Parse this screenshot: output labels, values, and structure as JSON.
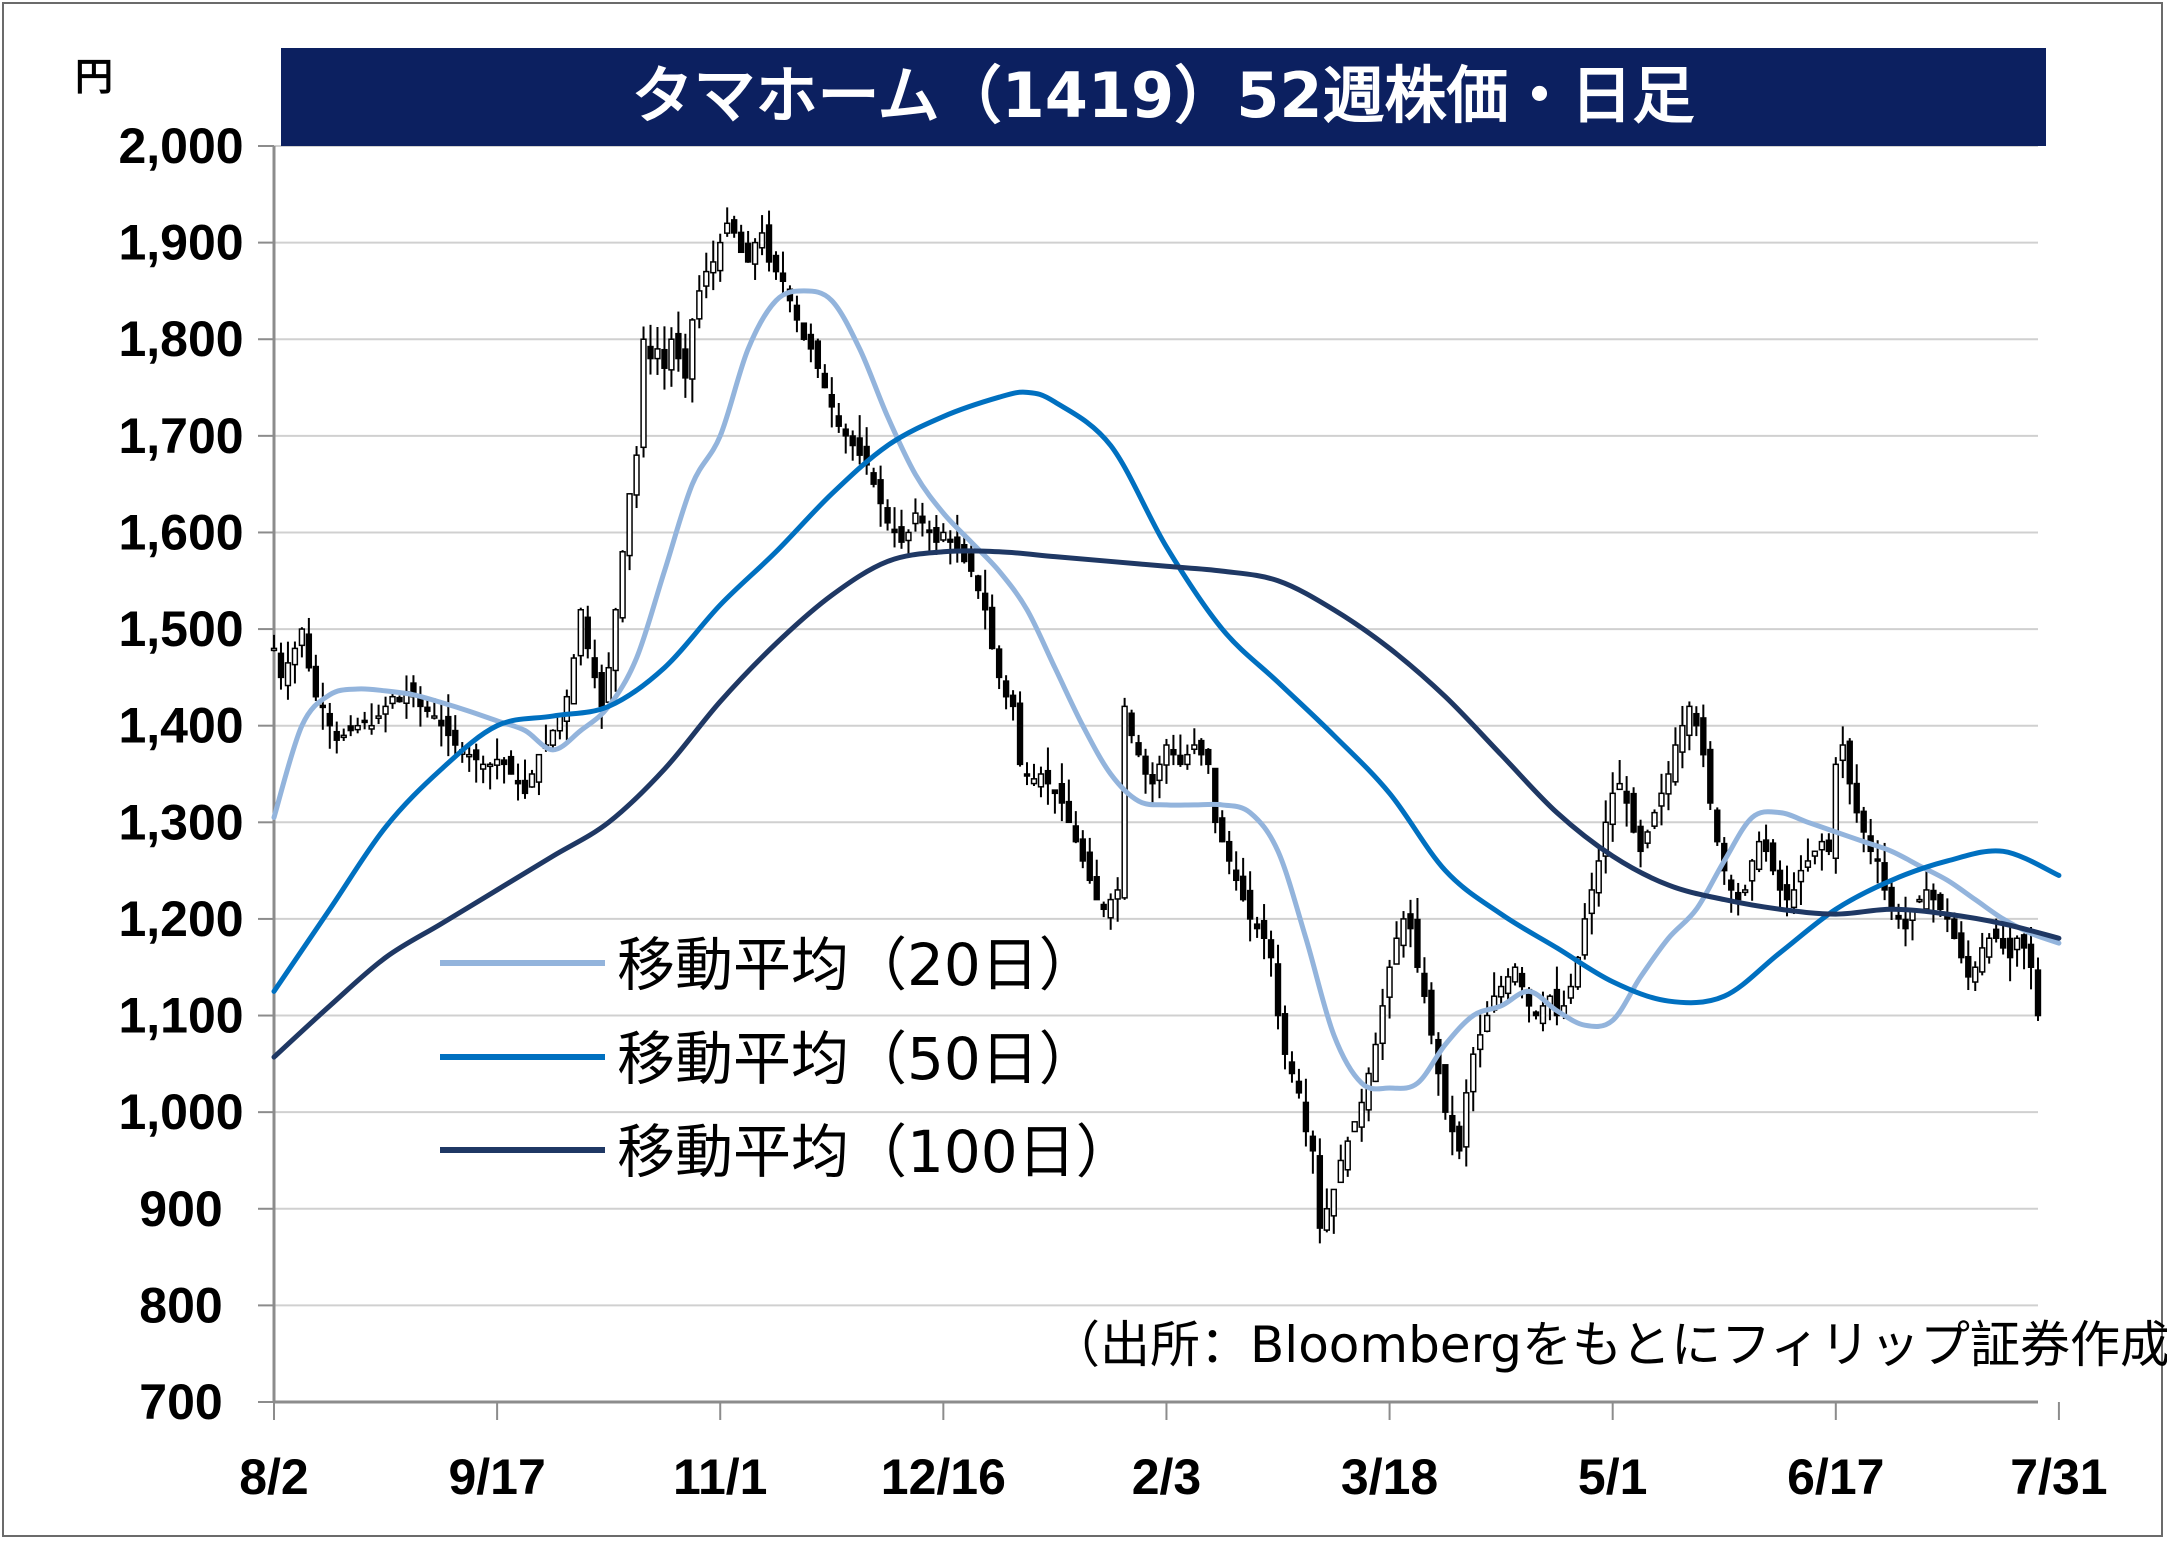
{
  "chart_data": {
    "type": "line",
    "subtype": "candlestick-with-moving-averages",
    "title": "タマホーム（1419）52週株価・日足",
    "y_unit_label": "円",
    "ylim": [
      700,
      2000
    ],
    "y_ticks": [
      700,
      800,
      900,
      1000,
      1100,
      1200,
      1300,
      1400,
      1500,
      1600,
      1700,
      1800,
      1900,
      2000
    ],
    "y_tick_labels": [
      "700",
      "800",
      "900",
      "1,000",
      "1,100",
      "1,200",
      "1,300",
      "1,400",
      "1,500",
      "1,600",
      "1,700",
      "1,800",
      "1,900",
      "2,000"
    ],
    "x_tick_labels": [
      "8/2",
      "9/17",
      "11/1",
      "12/16",
      "2/3",
      "3/18",
      "5/1",
      "6/17",
      "7/31"
    ],
    "x_tick_index": [
      0,
      32,
      64,
      96,
      128,
      160,
      192,
      224,
      256
    ],
    "grid": "horizontal",
    "candle_close": [
      1480,
      1450,
      1465,
      1480,
      1500,
      1460,
      1430,
      1420,
      1400,
      1385,
      1390,
      1395,
      1400,
      1405,
      1400,
      1410,
      1420,
      1430,
      1425,
      1435,
      1430,
      1420,
      1415,
      1410,
      1400,
      1390,
      1380,
      1375,
      1370,
      1365,
      1360,
      1360,
      1365,
      1360,
      1350,
      1340,
      1330,
      1350,
      1370,
      1380,
      1395,
      1410,
      1430,
      1470,
      1520,
      1480,
      1450,
      1420,
      1460,
      1520,
      1580,
      1640,
      1680,
      1800,
      1780,
      1790,
      1770,
      1800,
      1780,
      1760,
      1820,
      1850,
      1870,
      1880,
      1900,
      1920,
      1910,
      1890,
      1880,
      1900,
      1910,
      1880,
      1870,
      1860,
      1840,
      1820,
      1800,
      1790,
      1770,
      1750,
      1730,
      1710,
      1700,
      1690,
      1680,
      1670,
      1650,
      1630,
      1610,
      1600,
      1590,
      1600,
      1620,
      1610,
      1600,
      1590,
      1600,
      1590,
      1580,
      1570,
      1560,
      1540,
      1520,
      1480,
      1450,
      1430,
      1420,
      1360,
      1350,
      1345,
      1350,
      1340,
      1330,
      1320,
      1300,
      1280,
      1260,
      1240,
      1220,
      1210,
      1220,
      1230,
      1420,
      1390,
      1370,
      1350,
      1340,
      1360,
      1380,
      1370,
      1360,
      1370,
      1380,
      1370,
      1360,
      1300,
      1280,
      1260,
      1240,
      1220,
      1200,
      1190,
      1180,
      1160,
      1100,
      1060,
      1040,
      1020,
      980,
      960,
      880,
      900,
      920,
      950,
      970,
      990,
      1010,
      1040,
      1070,
      1110,
      1150,
      1180,
      1200,
      1190,
      1150,
      1120,
      1080,
      1040,
      1000,
      980,
      960,
      1020,
      1060,
      1080,
      1100,
      1120,
      1130,
      1140,
      1150,
      1130,
      1110,
      1100,
      1110,
      1120,
      1100,
      1110,
      1130,
      1160,
      1200,
      1230,
      1260,
      1300,
      1330,
      1340,
      1320,
      1290,
      1270,
      1290,
      1310,
      1330,
      1350,
      1380,
      1400,
      1420,
      1400,
      1370,
      1320,
      1280,
      1250,
      1230,
      1220,
      1230,
      1260,
      1280,
      1270,
      1250,
      1230,
      1220,
      1230,
      1250,
      1260,
      1270,
      1280,
      1270,
      1360,
      1380,
      1340,
      1310,
      1290,
      1270,
      1260,
      1230,
      1210,
      1200,
      1190,
      1210,
      1220,
      1230,
      1220,
      1210,
      1200,
      1180,
      1160,
      1140,
      1150,
      1170,
      1180,
      1180,
      1170,
      1160,
      1180,
      1170,
      1150,
      1100
    ],
    "series": [
      {
        "name": "移動平均（20日）",
        "color": "#93b4dc",
        "x": [
          0,
          4,
          8,
          12,
          16,
          20,
          24,
          28,
          32,
          36,
          40,
          44,
          48,
          52,
          56,
          60,
          64,
          68,
          72,
          76,
          80,
          84,
          88,
          92,
          96,
          100,
          104,
          108,
          112,
          116,
          120,
          124,
          128,
          132,
          136,
          140,
          144,
          148,
          152,
          156,
          160,
          164,
          168,
          172,
          176,
          180,
          184,
          188,
          192,
          196,
          200,
          204,
          208,
          212,
          216,
          220,
          224,
          228,
          232,
          236,
          240,
          244,
          248,
          252,
          256
        ],
        "values": [
          1305,
          1400,
          1432,
          1438,
          1436,
          1432,
          1424,
          1415,
          1405,
          1395,
          1375,
          1395,
          1420,
          1470,
          1560,
          1650,
          1700,
          1790,
          1840,
          1850,
          1840,
          1790,
          1720,
          1660,
          1620,
          1590,
          1560,
          1520,
          1460,
          1400,
          1350,
          1322,
          1318,
          1318,
          1318,
          1310,
          1270,
          1180,
          1080,
          1030,
          1025,
          1030,
          1070,
          1100,
          1110,
          1125,
          1105,
          1090,
          1095,
          1140,
          1180,
          1210,
          1260,
          1305,
          1310,
          1300,
          1290,
          1280,
          1270,
          1255,
          1240,
          1220,
          1200,
          1185,
          1175
        ]
      },
      {
        "name": "移動平均（50日）",
        "color": "#0070c0",
        "x": [
          0,
          8,
          16,
          24,
          32,
          40,
          48,
          56,
          64,
          72,
          80,
          88,
          96,
          104,
          108,
          112,
          120,
          128,
          136,
          144,
          152,
          160,
          168,
          176,
          184,
          192,
          200,
          208,
          216,
          224,
          232,
          240,
          248,
          256
        ],
        "values": [
          1125,
          1210,
          1295,
          1355,
          1400,
          1410,
          1420,
          1460,
          1525,
          1580,
          1640,
          1690,
          1720,
          1740,
          1745,
          1735,
          1690,
          1585,
          1500,
          1445,
          1390,
          1330,
          1250,
          1205,
          1170,
          1135,
          1115,
          1120,
          1165,
          1210,
          1240,
          1260,
          1270,
          1245
        ]
      },
      {
        "name": "移動平均（100日）",
        "color": "#1f3864",
        "x": [
          0,
          8,
          16,
          24,
          32,
          40,
          48,
          56,
          64,
          72,
          80,
          88,
          96,
          104,
          112,
          120,
          128,
          136,
          144,
          152,
          160,
          168,
          176,
          184,
          192,
          200,
          208,
          216,
          224,
          232,
          240,
          248,
          256
        ],
        "values": [
          1057,
          1110,
          1160,
          1195,
          1230,
          1265,
          1300,
          1355,
          1425,
          1485,
          1535,
          1570,
          1580,
          1580,
          1575,
          1570,
          1565,
          1560,
          1550,
          1520,
          1480,
          1430,
          1370,
          1310,
          1265,
          1235,
          1220,
          1210,
          1205,
          1210,
          1205,
          1195,
          1180
        ]
      }
    ],
    "legend_position": "lower-left inside plot",
    "source_note": "（出所：Bloombergをもとにフィリップ証券作成）"
  }
}
